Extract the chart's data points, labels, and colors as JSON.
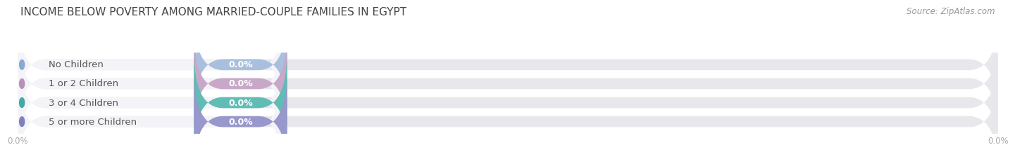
{
  "title": "INCOME BELOW POVERTY AMONG MARRIED-COUPLE FAMILIES IN EGYPT",
  "source": "Source: ZipAtlas.com",
  "categories": [
    "No Children",
    "1 or 2 Children",
    "3 or 4 Children",
    "5 or more Children"
  ],
  "values": [
    0.0,
    0.0,
    0.0,
    0.0
  ],
  "bar_colors": [
    "#a8c0de",
    "#c8a8c8",
    "#60bdb5",
    "#9898cc"
  ],
  "bar_bg_color": "#e8e8ec",
  "label_bg_colors": [
    "#dce8f4",
    "#e8d8ec",
    "#c8e8e4",
    "#d8d8ec"
  ],
  "label_circle_colors": [
    "#88aad0",
    "#b890b8",
    "#40aaa4",
    "#8080bb"
  ],
  "x_max": 100.0,
  "x_tick_labels": [
    "0.0%",
    "0.0%"
  ],
  "background_color": "#ffffff",
  "title_fontsize": 11,
  "source_fontsize": 8.5,
  "bar_label_fontsize": 9,
  "category_fontsize": 9.5,
  "value_label_color": "#ffffff",
  "category_text_color": "#555555",
  "tick_label_color": "#aaaaaa",
  "grid_color": "#cccccc"
}
